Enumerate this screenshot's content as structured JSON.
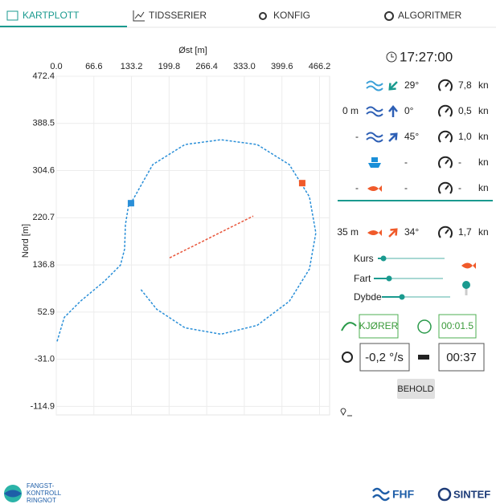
{
  "tabs": [
    "KARTPLOTT",
    "TIDSSERIER",
    "KONFIG",
    "ALGORITMER"
  ],
  "chart_data": {
    "type": "line",
    "xlabel": "Øst [m]",
    "ylabel": "Nord [m]",
    "xlim": [
      0,
      484
    ],
    "ylim": [
      -130,
      472.4
    ],
    "xticks": [
      {
        "value": 0,
        "label": "0.0"
      },
      66.6,
      133.2,
      199.8,
      266.4,
      {
        "value": 333,
        "label": "333.0"
      },
      399.6,
      466.2
    ],
    "yticks": [
      472.4,
      388.5,
      304.6,
      220.7,
      136.8,
      52.9,
      {
        "value": -31,
        "label": "-31.0"
      },
      -114.9
    ],
    "grid": true,
    "series": [
      {
        "color": "#2a8fd8",
        "x": [
          1.4,
          14.2,
          42.7,
          85.4,
          113.8,
          121.0,
          122.4,
          128.1,
          132.3,
          170.8,
          227.7,
          291.7,
          355.8,
          412.7,
          448.3,
          459.7,
          448.3,
          412.7,
          355.8,
          291.7,
          227.7,
          177.9,
          149.4
        ],
        "values": [
          0.7,
          43.6,
          72.2,
          107.9,
          136.5,
          165.1,
          208.0,
          243.7,
          246.6,
          315.2,
          350.9,
          359.5,
          350.9,
          315.2,
          258.0,
          193.7,
          129.4,
          72.2,
          29.3,
          13.6,
          25.0,
          57.9,
          93.6
        ]
      },
      {
        "color": "#e8553a",
        "x": [
          200.7,
          348.7
        ],
        "values": [
          149.4,
          223.7
        ]
      }
    ],
    "points": [
      {
        "x": 132.3,
        "y": 246.6,
        "color": "#2a8fd8"
      },
      {
        "x": 435.5,
        "y": 282.3,
        "color": "#f05a2a"
      }
    ]
  },
  "panel": {
    "time": "17:27:00",
    "rows": [
      {
        "direction": "29°",
        "speed": "7,8",
        "unit": "kn"
      },
      {
        "prefix": "0 m",
        "direction": "0°",
        "speed": "0,5",
        "unit": "kn"
      },
      {
        "prefix": "-",
        "direction": "45°",
        "speed": "1,0",
        "unit": "kn"
      },
      {
        "direction": "-",
        "speed": "-",
        "unit": "kn"
      },
      {
        "prefix": "-",
        "direction": "-",
        "speed": "-",
        "unit": "kn"
      },
      {
        "prefix": "35 m",
        "direction": "34°",
        "speed": "1,7",
        "unit": "kn"
      }
    ],
    "sliders": [
      "Kurs",
      "Fart",
      "Dybde"
    ],
    "status": "KJØRER",
    "timer": "00:01.5",
    "rate": "-0,2 °/s",
    "countdown": "00:37",
    "hold": "BEHOLD"
  },
  "footer": {
    "logo": [
      "FANGST-",
      "KONTROLL",
      "RINGNOT"
    ],
    "partners": [
      "FHF",
      "SINTEF"
    ]
  }
}
